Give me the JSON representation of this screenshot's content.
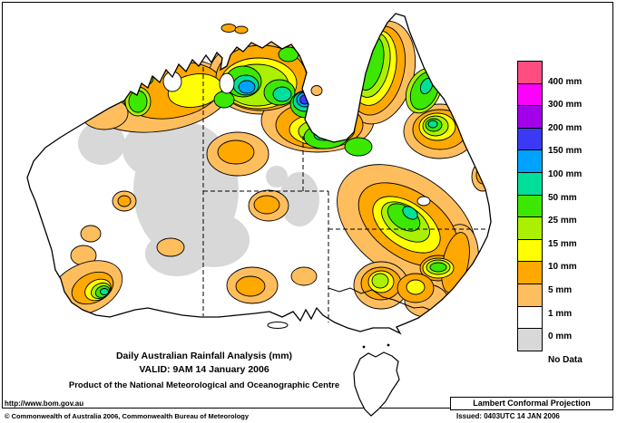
{
  "map": {
    "title_line1": "Daily Australian Rainfall Analysis (mm)",
    "title_line2": "VALID: 9AM 14 January 2006",
    "title_line3": "Product of the National Meteorological and Oceanographic Centre",
    "url": "http://www.bom.gov.au",
    "copyright": "© Commonwealth of Australia 2006, Commonwealth Bureau of Meteorology",
    "projection": "Lambert Conformal Projection",
    "issued": "Issued: 0403UTC 14 JAN 2006"
  },
  "legend": {
    "entries": [
      {
        "label": "400 mm",
        "level": "400mm",
        "color": "#FF4D82"
      },
      {
        "label": "300 mm",
        "level": "300mm",
        "color": "#FF00FF"
      },
      {
        "label": "200 mm",
        "level": "200mm",
        "color": "#A100E8"
      },
      {
        "label": "150 mm",
        "level": "150mm",
        "color": "#3A3AF5"
      },
      {
        "label": "100 mm",
        "level": "100mm",
        "color": "#00A2FF"
      },
      {
        "label": "50 mm",
        "level": "50mm",
        "color": "#00E09B"
      },
      {
        "label": "25 mm",
        "level": "25mm",
        "color": "#3CE800"
      },
      {
        "label": "15 mm",
        "level": "15mm",
        "color": "#ABF000"
      },
      {
        "label": "10 mm",
        "level": "10mm",
        "color": "#FFFF00"
      },
      {
        "label": "5 mm",
        "level": "5mm",
        "color": "#FFA800"
      },
      {
        "label": "1 mm",
        "level": "1mm",
        "color": "#FFBE5E"
      },
      {
        "label": "0 mm",
        "level": "0mm",
        "color": "#FFFFFF"
      },
      {
        "label": "No Data",
        "level": "nodata",
        "color": "#D8D8D8"
      }
    ]
  },
  "colors": {
    "coastline": "#000000",
    "background": "#FFFFFF"
  }
}
